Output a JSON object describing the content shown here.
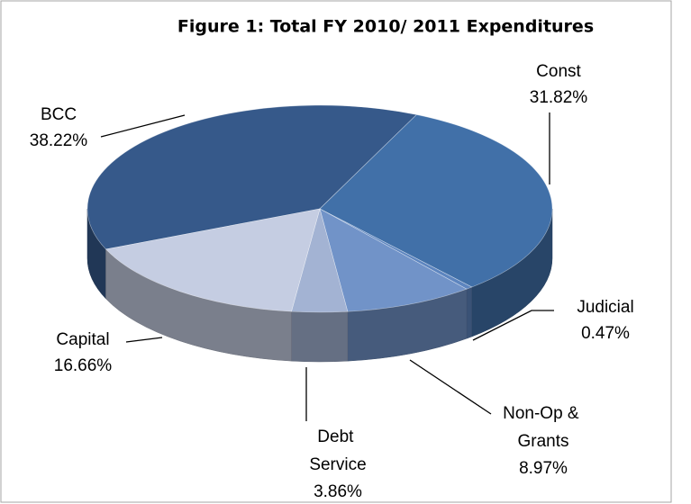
{
  "chart_data": {
    "type": "pie",
    "title": "Figure 1: Total FY 2010/ 2011 Expenditures",
    "categories": [
      "BCC",
      "Const",
      "Judicial",
      "Non-Op & Grants",
      "Debt Service",
      "Capital"
    ],
    "values": [
      38.22,
      31.82,
      0.47,
      8.97,
      3.86,
      16.66
    ],
    "value_labels": [
      "38.22%",
      "31.82%",
      "0.47%",
      "8.97%",
      "3.86%",
      "16.66%"
    ],
    "colors": [
      "#36598a",
      "#4170a8",
      "#5d85bf",
      "#7193c8",
      "#a3b3d3",
      "#c5cde2"
    ]
  }
}
